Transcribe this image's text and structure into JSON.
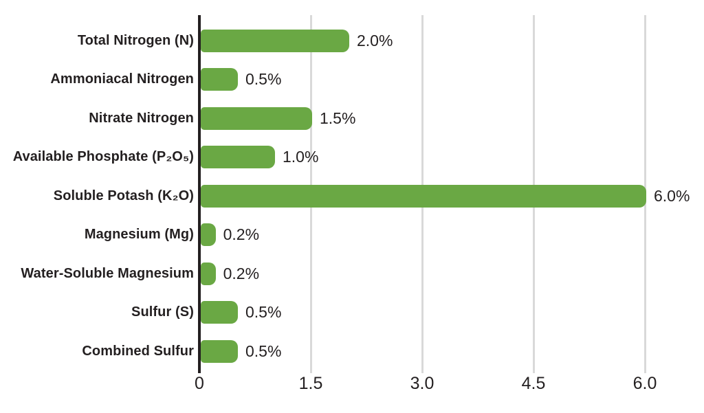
{
  "chart_data": {
    "type": "bar",
    "orientation": "horizontal",
    "categories": [
      "Total Nitrogen (N)",
      "Ammoniacal Nitrogen",
      "Nitrate Nitrogen",
      "Available Phosphate (P₂O₅)",
      "Soluble Potash (K₂O)",
      "Magnesium (Mg)",
      "Water-Soluble Magnesium",
      "Sulfur (S)",
      "Combined Sulfur"
    ],
    "values": [
      2.0,
      0.5,
      1.5,
      1.0,
      6.0,
      0.2,
      0.2,
      0.5,
      0.5
    ],
    "value_labels": [
      "2.0%",
      "0.5%",
      "1.5%",
      "1.0%",
      "6.0%",
      "0.2%",
      "0.2%",
      "0.5%",
      "0.5%"
    ],
    "x_ticks": [
      "0",
      "1.5",
      "3.0",
      "4.5",
      "6.0"
    ],
    "x_tick_values": [
      0,
      1.5,
      3.0,
      4.5,
      6.0
    ],
    "xlim": [
      0,
      6.0
    ],
    "grid": true,
    "legend": false,
    "bar_color": "#6aa844",
    "axis_color": "#231f20",
    "gridline_color": "#d9d9d9",
    "text_color": "#231f20",
    "background_color": "#ffffff"
  }
}
